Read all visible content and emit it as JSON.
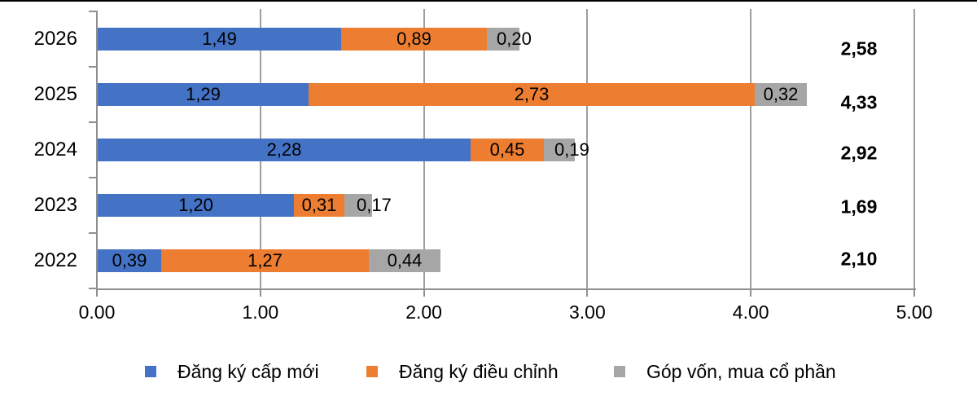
{
  "chart_data": {
    "type": "bar",
    "orientation": "horizontal-stacked",
    "categories": [
      "2026",
      "2025",
      "2024",
      "2023",
      "2022"
    ],
    "series": [
      {
        "name": "Đăng ký cấp mới",
        "color": "#4472C4",
        "values": [
          1.49,
          1.29,
          2.28,
          1.2,
          0.39
        ],
        "labels": [
          "1,49",
          "1,29",
          "2,28",
          "1,20",
          "0,39"
        ]
      },
      {
        "name": "Đăng ký điều chỉnh",
        "color": "#ED7D31",
        "values": [
          0.89,
          2.73,
          0.45,
          0.31,
          1.27
        ],
        "labels": [
          "0,89",
          "2,73",
          "0,45",
          "0,31",
          "1,27"
        ]
      },
      {
        "name": "Góp vốn, mua cổ phần",
        "color": "#A6A6A6",
        "values": [
          0.2,
          0.32,
          0.19,
          0.17,
          0.44
        ],
        "labels": [
          "0,20",
          "0,32",
          "0,19",
          "0,17",
          "0,44"
        ]
      }
    ],
    "totals": [
      "2,58",
      "4,33",
      "2,92",
      "1,69",
      "2,10"
    ],
    "x_axis": {
      "min": 0,
      "max": 5,
      "tick_labels": [
        "0.00",
        "1.00",
        "2.00",
        "3.00",
        "4.00",
        "5.00"
      ]
    },
    "grid": true,
    "legend_position": "bottom",
    "label_color": "#000000",
    "gridline_color": "#9e9e9e",
    "axis_color": "#8f8f8f"
  }
}
